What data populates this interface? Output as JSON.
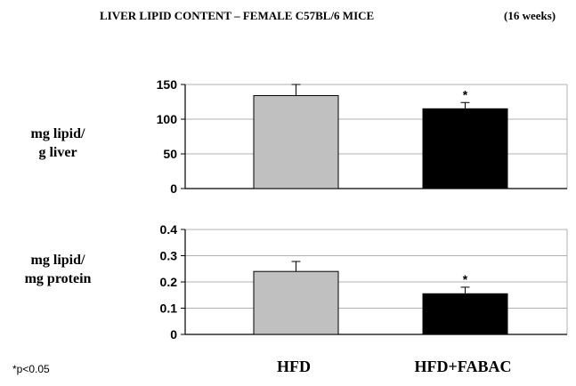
{
  "header": {
    "title": "LIVER LIPID CONTENT – FEMALE C57BL/6 MICE",
    "subtitle": "(16 weeks)"
  },
  "footnote": "*p<0.05",
  "colors": {
    "hfd": "#c0c0c0",
    "hfd_fabac": "#000000",
    "grid": "#b0b0b0",
    "axis": "#000000"
  },
  "chart_data": [
    {
      "type": "bar",
      "ylabel_lines": [
        "mg lipid/",
        "g liver"
      ],
      "categories": [
        "HFD",
        "HFD+FABAC"
      ],
      "values": [
        134,
        115
      ],
      "errors": [
        16,
        9
      ],
      "significance": [
        "",
        "*"
      ],
      "ylim": [
        0,
        150
      ],
      "yticks": [
        "0",
        "50",
        "100",
        "150"
      ],
      "grid": true
    },
    {
      "type": "bar",
      "ylabel_lines": [
        "mg lipid/",
        "mg protein"
      ],
      "categories": [
        "HFD",
        "HFD+FABAC"
      ],
      "values": [
        0.24,
        0.155
      ],
      "errors": [
        0.038,
        0.025
      ],
      "significance": [
        "",
        "*"
      ],
      "ylim": [
        0,
        0.4
      ],
      "yticks": [
        "0",
        "0.1",
        "0.2",
        "0.3",
        "0.4"
      ],
      "grid": true
    }
  ]
}
